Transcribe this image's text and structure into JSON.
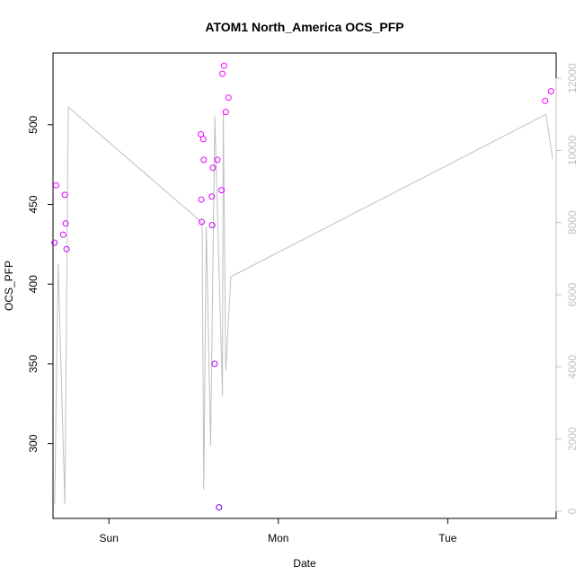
{
  "chart_data": {
    "type": "scatter",
    "title": "ATOM1 North_America OCS_PFP",
    "xlabel": "Date",
    "ylabel": "OCS_PFP",
    "x_range_days": [
      -0.33,
      2.64
    ],
    "x_ticks": [
      {
        "label": "Sun",
        "day": 0
      },
      {
        "label": "Mon",
        "day": 1
      },
      {
        "label": "Tue",
        "day": 2
      }
    ],
    "ylim": [
      253,
      545
    ],
    "y_ticks": [
      300,
      350,
      400,
      450,
      500
    ],
    "y2lim": [
      -200,
      12700
    ],
    "y2_ticks": [
      0,
      2000,
      4000,
      6000,
      8000,
      10000,
      12000
    ],
    "colors": {
      "axis": "#000000",
      "secondary_axis": "#c0c0c0",
      "line": "#c0c0c0",
      "point_low": "#7b00ff",
      "point_high": "#ff00ff"
    },
    "points": [
      {
        "day": -0.321,
        "value": 426
      },
      {
        "day": -0.312,
        "value": 462
      },
      {
        "day": -0.27,
        "value": 431
      },
      {
        "day": -0.26,
        "value": 456
      },
      {
        "day": -0.255,
        "value": 438
      },
      {
        "day": -0.25,
        "value": 422
      },
      {
        "day": 0.543,
        "value": 494
      },
      {
        "day": 0.545,
        "value": 453
      },
      {
        "day": 0.548,
        "value": 439
      },
      {
        "day": 0.557,
        "value": 491
      },
      {
        "day": 0.56,
        "value": 478
      },
      {
        "day": 0.607,
        "value": 455
      },
      {
        "day": 0.61,
        "value": 437
      },
      {
        "day": 0.614,
        "value": 473
      },
      {
        "day": 0.624,
        "value": 350
      },
      {
        "day": 0.64,
        "value": 478
      },
      {
        "day": 0.65,
        "value": 260
      },
      {
        "day": 0.665,
        "value": 459
      },
      {
        "day": 0.67,
        "value": 532
      },
      {
        "day": 0.68,
        "value": 537
      },
      {
        "day": 0.69,
        "value": 508
      },
      {
        "day": 0.706,
        "value": 517
      },
      {
        "day": 2.575,
        "value": 515
      },
      {
        "day": 2.61,
        "value": 521
      }
    ],
    "altitude_series": {
      "name": "",
      "axis": "right",
      "points": [
        {
          "day": -0.32,
          "value": 200
        },
        {
          "day": -0.3,
          "value": 6850
        },
        {
          "day": -0.26,
          "value": 200
        },
        {
          "day": -0.24,
          "value": 11200
        },
        {
          "day": 0.55,
          "value": 8000
        },
        {
          "day": 0.56,
          "value": 600
        },
        {
          "day": 0.575,
          "value": 7900
        },
        {
          "day": 0.6,
          "value": 1800
        },
        {
          "day": 0.625,
          "value": 10950
        },
        {
          "day": 0.645,
          "value": 7600
        },
        {
          "day": 0.67,
          "value": 3200
        },
        {
          "day": 0.675,
          "value": 11100
        },
        {
          "day": 0.69,
          "value": 3900
        },
        {
          "day": 0.72,
          "value": 6500
        },
        {
          "day": 2.58,
          "value": 11000
        },
        {
          "day": 2.62,
          "value": 9750
        }
      ]
    }
  }
}
